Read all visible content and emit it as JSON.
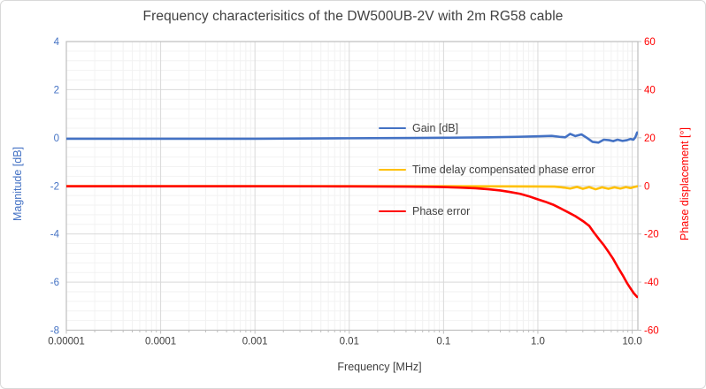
{
  "chart_data": {
    "type": "line",
    "title": "Frequency characterisitics of the DW500UB-2V with 2m RG58 cable",
    "x_axis": {
      "label": "Frequency [MHz]",
      "scale": "log",
      "min": 1e-05,
      "max": 11.5,
      "tick_labels": [
        "0.00001",
        "0.0001",
        "0.001",
        "0.01",
        "0.1",
        "1.0",
        "10.0"
      ],
      "tick_values": [
        1e-05,
        0.0001,
        0.001,
        0.01,
        0.1,
        1.0,
        10.0
      ]
    },
    "y_axis_left": {
      "label": "Magnitude [dB]",
      "min": -8,
      "max": 4,
      "major_unit": 2,
      "minor_unit": 0.4,
      "tick_labels": [
        "4",
        "2",
        "0",
        "-2",
        "-4",
        "-6",
        "-8"
      ],
      "tick_values": [
        4,
        2,
        0,
        -2,
        -4,
        -6,
        -8
      ],
      "color": "#4472C4"
    },
    "y_axis_right": {
      "label": "Phase displacement [°]",
      "min": -60,
      "max": 60,
      "major_unit": 20,
      "minor_unit": 4,
      "tick_labels": [
        "60",
        "40",
        "20",
        "0",
        "-20",
        "-40",
        "-60"
      ],
      "tick_values": [
        60,
        40,
        20,
        0,
        -20,
        -40,
        -60
      ],
      "color": "#FF0000"
    },
    "grid": {
      "major_color": "#D9D9D9",
      "minor_color": "#F2F2F2",
      "border_color": "#BFBFBF",
      "tick_color": "#BFBFBF"
    },
    "legend": {
      "position": "inside-right",
      "text_color": "#404040"
    },
    "series": [
      {
        "name": "Gain [dB]",
        "axis": "left",
        "color": "#4472C4",
        "points": [
          [
            1e-05,
            -0.04
          ],
          [
            0.0001,
            -0.04
          ],
          [
            0.001,
            -0.04
          ],
          [
            0.01,
            -0.02
          ],
          [
            0.05,
            -0.01
          ],
          [
            0.1,
            0.0
          ],
          [
            0.3,
            0.02
          ],
          [
            0.6,
            0.04
          ],
          [
            1.0,
            0.06
          ],
          [
            1.4,
            0.08
          ],
          [
            1.7,
            0.04
          ],
          [
            1.95,
            0.02
          ],
          [
            2.2,
            0.16
          ],
          [
            2.5,
            0.07
          ],
          [
            2.9,
            0.14
          ],
          [
            3.3,
            0.0
          ],
          [
            3.8,
            -0.17
          ],
          [
            4.4,
            -0.2
          ],
          [
            5.0,
            -0.08
          ],
          [
            5.7,
            -0.1
          ],
          [
            6.3,
            -0.14
          ],
          [
            7.0,
            -0.08
          ],
          [
            7.9,
            -0.13
          ],
          [
            8.8,
            -0.1
          ],
          [
            9.6,
            -0.05
          ],
          [
            10.3,
            -0.08
          ],
          [
            10.8,
            0.02
          ],
          [
            11.3,
            0.22
          ]
        ]
      },
      {
        "name": "Time delay compensated phase error",
        "axis": "right",
        "color": "#FFC000",
        "points": [
          [
            1e-05,
            -0.1
          ],
          [
            0.0001,
            -0.1
          ],
          [
            0.001,
            -0.1
          ],
          [
            0.01,
            -0.1
          ],
          [
            0.1,
            -0.15
          ],
          [
            0.5,
            -0.2
          ],
          [
            1.0,
            -0.25
          ],
          [
            1.5,
            -0.3
          ],
          [
            1.9,
            -0.7
          ],
          [
            2.2,
            -1.1
          ],
          [
            2.6,
            -0.4
          ],
          [
            3.0,
            -1.2
          ],
          [
            3.5,
            -0.5
          ],
          [
            4.1,
            -1.4
          ],
          [
            4.8,
            -0.6
          ],
          [
            5.6,
            -1.2
          ],
          [
            6.5,
            -0.6
          ],
          [
            7.5,
            -1.1
          ],
          [
            8.6,
            -0.5
          ],
          [
            9.6,
            -0.9
          ],
          [
            10.4,
            -0.5
          ],
          [
            11.3,
            -0.2
          ]
        ]
      },
      {
        "name": "Phase error",
        "axis": "right",
        "color": "#FF0000",
        "points": [
          [
            1e-05,
            -0.15
          ],
          [
            0.0001,
            -0.15
          ],
          [
            0.001,
            -0.15
          ],
          [
            0.005,
            -0.18
          ],
          [
            0.01,
            -0.2
          ],
          [
            0.02,
            -0.25
          ],
          [
            0.04,
            -0.3
          ],
          [
            0.07,
            -0.4
          ],
          [
            0.1,
            -0.5
          ],
          [
            0.15,
            -0.7
          ],
          [
            0.22,
            -1.0
          ],
          [
            0.3,
            -1.4
          ],
          [
            0.4,
            -1.9
          ],
          [
            0.5,
            -2.5
          ],
          [
            0.65,
            -3.3
          ],
          [
            0.8,
            -4.3
          ],
          [
            1.0,
            -5.6
          ],
          [
            1.2,
            -6.6
          ],
          [
            1.45,
            -7.8
          ],
          [
            1.75,
            -9.4
          ],
          [
            2.1,
            -11.0
          ],
          [
            2.5,
            -12.6
          ],
          [
            3.0,
            -14.6
          ],
          [
            3.5,
            -16.6
          ],
          [
            3.9,
            -19.2
          ],
          [
            4.5,
            -22.4
          ],
          [
            5.0,
            -24.6
          ],
          [
            5.6,
            -27.4
          ],
          [
            6.3,
            -30.4
          ],
          [
            7.0,
            -33.6
          ],
          [
            7.9,
            -37.0
          ],
          [
            8.8,
            -40.3
          ],
          [
            9.6,
            -42.6
          ],
          [
            10.4,
            -44.6
          ],
          [
            11.3,
            -46.2
          ]
        ]
      }
    ]
  }
}
